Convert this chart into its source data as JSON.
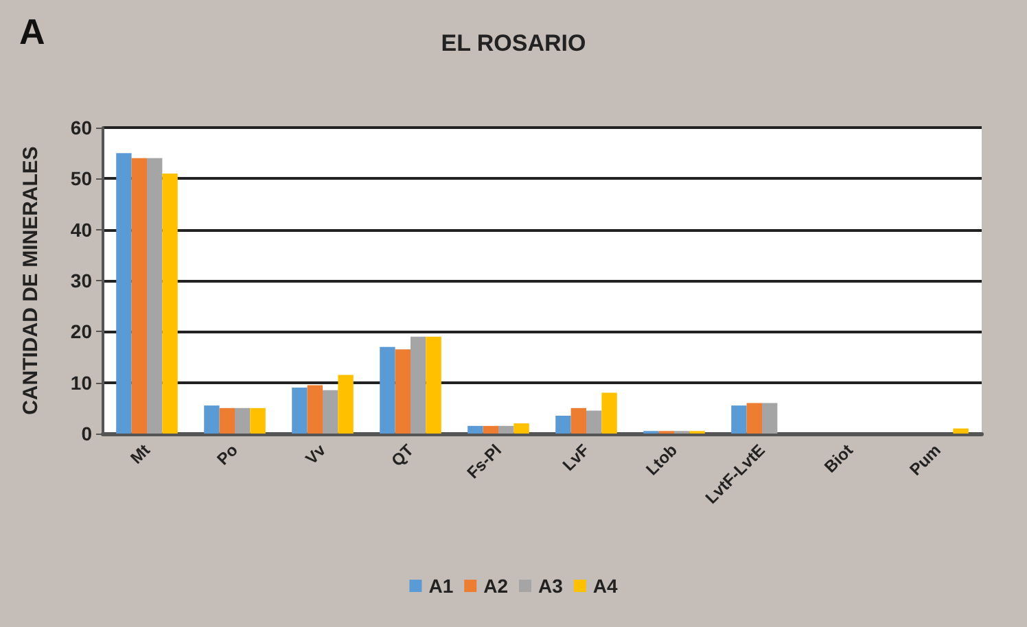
{
  "chart_data": {
    "type": "bar",
    "title": "EL ROSARIO",
    "ylabel": "CANTIDAD DE MINERALES",
    "annotations": [
      "A"
    ],
    "categories": [
      "Mt",
      "Po",
      "Vv",
      "QT",
      "Fs-Pl",
      "LvF",
      "Ltob",
      "LvtF-LvtE",
      "Biot",
      "Pum"
    ],
    "series": [
      {
        "name": "A1",
        "color": "#5b9bd5",
        "values": [
          55,
          5.5,
          9,
          17,
          1.5,
          3.5,
          0.5,
          5.5,
          0,
          0
        ]
      },
      {
        "name": "A2",
        "color": "#ed7d31",
        "values": [
          54,
          5,
          9.5,
          16.5,
          1.5,
          5,
          0.5,
          6,
          0,
          0
        ]
      },
      {
        "name": "A3",
        "color": "#a5a5a5",
        "values": [
          54,
          5,
          8.5,
          19,
          1.5,
          4.5,
          0.5,
          6,
          0,
          0
        ]
      },
      {
        "name": "A4",
        "color": "#ffc000",
        "values": [
          51,
          5,
          11.5,
          19,
          2,
          8,
          0.5,
          0,
          0,
          1
        ]
      }
    ],
    "ylim": [
      0,
      60
    ],
    "yticks": [
      0,
      10,
      20,
      30,
      40,
      50,
      60
    ],
    "grid": "y",
    "legend": "bottom"
  }
}
